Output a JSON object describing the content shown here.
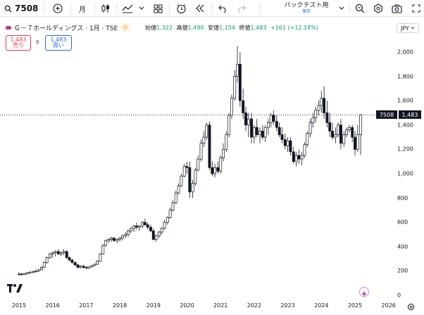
{
  "toolbar": {
    "symbol": "7508",
    "interval": "月",
    "backtest_title": "バックテスト用",
    "backtest_sub": "保存"
  },
  "legend": {
    "title": "Ｇ－７ホールディングス · 1月 · TSE",
    "badge": "D",
    "open_label": "始値",
    "open": "1,322",
    "high_label": "高値",
    "high": "1,490",
    "low_label": "安値",
    "low": "1,154",
    "close_label": "終値",
    "close": "1,483",
    "change": "+161 (+12.18%)"
  },
  "trade": {
    "sell_price": "1,483",
    "sell_label": "売り",
    "spread": "0",
    "buy_price": "1,483",
    "buy_label": "買い"
  },
  "currency": "JPY",
  "y_axis": [
    "2,000",
    "1,800",
    "1,600",
    "1,400",
    "1,200",
    "1,000",
    "800",
    "600",
    "400",
    "200",
    "0"
  ],
  "x_axis": [
    "2015",
    "2016",
    "2017",
    "2018",
    "2019",
    "2020",
    "2021",
    "2022",
    "2023",
    "2024",
    "2025",
    "2026"
  ],
  "price_tag": {
    "symbol": "7508",
    "price": "1,483"
  },
  "colors": {
    "up": "#131722",
    "down": "#131722",
    "accent": "#2962ff",
    "sell": "#f23645"
  },
  "icons": [
    "search-icon",
    "add-icon",
    "candles-icon",
    "indicators-icon",
    "layout-icon",
    "alert-icon",
    "replay-icon",
    "undo-icon",
    "redo-icon",
    "chevron-down-icon",
    "settings-icon",
    "screenshot-icon",
    "tradingview-logo",
    "bolt-icon"
  ],
  "chart_data": {
    "type": "candlestick",
    "ylim": [
      0,
      2100
    ],
    "x_range": [
      "2015-01",
      "2026-01"
    ],
    "series": [
      [
        2015.0,
        170,
        190,
        160,
        175
      ],
      [
        2015.08,
        175,
        185,
        160,
        170
      ],
      [
        2015.17,
        170,
        185,
        165,
        180
      ],
      [
        2015.25,
        180,
        190,
        170,
        185
      ],
      [
        2015.33,
        185,
        200,
        175,
        190
      ],
      [
        2015.42,
        190,
        200,
        180,
        195
      ],
      [
        2015.5,
        195,
        210,
        185,
        200
      ],
      [
        2015.58,
        200,
        215,
        190,
        210
      ],
      [
        2015.67,
        210,
        240,
        205,
        230
      ],
      [
        2015.75,
        230,
        280,
        225,
        270
      ],
      [
        2015.83,
        270,
        320,
        260,
        310
      ],
      [
        2015.92,
        310,
        350,
        300,
        340
      ],
      [
        2016.0,
        340,
        360,
        310,
        350
      ],
      [
        2016.08,
        350,
        370,
        320,
        360
      ],
      [
        2016.17,
        360,
        380,
        330,
        340
      ],
      [
        2016.25,
        340,
        360,
        320,
        350
      ],
      [
        2016.33,
        350,
        380,
        330,
        360
      ],
      [
        2016.42,
        360,
        370,
        300,
        310
      ],
      [
        2016.5,
        310,
        320,
        280,
        290
      ],
      [
        2016.58,
        290,
        300,
        260,
        270
      ],
      [
        2016.67,
        270,
        280,
        240,
        250
      ],
      [
        2016.75,
        250,
        260,
        220,
        230
      ],
      [
        2016.83,
        230,
        250,
        220,
        240
      ],
      [
        2016.92,
        240,
        250,
        220,
        230
      ],
      [
        2017.0,
        230,
        240,
        215,
        225
      ],
      [
        2017.08,
        225,
        240,
        215,
        235
      ],
      [
        2017.17,
        235,
        250,
        225,
        245
      ],
      [
        2017.25,
        245,
        260,
        240,
        255
      ],
      [
        2017.33,
        255,
        290,
        250,
        280
      ],
      [
        2017.42,
        280,
        350,
        275,
        340
      ],
      [
        2017.5,
        340,
        420,
        335,
        410
      ],
      [
        2017.58,
        410,
        460,
        400,
        450
      ],
      [
        2017.67,
        450,
        470,
        430,
        460
      ],
      [
        2017.75,
        460,
        480,
        440,
        470
      ],
      [
        2017.83,
        470,
        480,
        440,
        450
      ],
      [
        2017.92,
        450,
        470,
        430,
        460
      ],
      [
        2018.0,
        460,
        480,
        440,
        470
      ],
      [
        2018.08,
        470,
        500,
        450,
        490
      ],
      [
        2018.17,
        490,
        520,
        470,
        500
      ],
      [
        2018.25,
        500,
        540,
        480,
        530
      ],
      [
        2018.33,
        530,
        560,
        510,
        550
      ],
      [
        2018.42,
        550,
        580,
        520,
        570
      ],
      [
        2018.5,
        570,
        600,
        540,
        560
      ],
      [
        2018.58,
        560,
        580,
        530,
        570
      ],
      [
        2018.67,
        570,
        610,
        550,
        600
      ],
      [
        2018.75,
        600,
        630,
        570,
        580
      ],
      [
        2018.83,
        580,
        600,
        540,
        560
      ],
      [
        2018.92,
        560,
        580,
        520,
        530
      ],
      [
        2019.0,
        530,
        550,
        450,
        460
      ],
      [
        2019.08,
        460,
        500,
        440,
        490
      ],
      [
        2019.17,
        490,
        530,
        470,
        520
      ],
      [
        2019.25,
        520,
        560,
        500,
        550
      ],
      [
        2019.33,
        550,
        620,
        540,
        600
      ],
      [
        2019.42,
        600,
        650,
        580,
        640
      ],
      [
        2019.5,
        640,
        720,
        630,
        700
      ],
      [
        2019.58,
        700,
        780,
        690,
        760
      ],
      [
        2019.67,
        760,
        860,
        750,
        840
      ],
      [
        2019.75,
        840,
        920,
        830,
        900
      ],
      [
        2019.83,
        900,
        1000,
        890,
        980
      ],
      [
        2019.92,
        980,
        1080,
        970,
        1060
      ],
      [
        2020.0,
        1060,
        1100,
        1000,
        1050
      ],
      [
        2020.08,
        1050,
        1100,
        800,
        850
      ],
      [
        2020.17,
        850,
        950,
        800,
        920
      ],
      [
        2020.25,
        920,
        1050,
        900,
        1030
      ],
      [
        2020.33,
        1030,
        1150,
        1020,
        1120
      ],
      [
        2020.42,
        1120,
        1280,
        1100,
        1250
      ],
      [
        2020.5,
        1250,
        1350,
        1220,
        1300
      ],
      [
        2020.58,
        1300,
        1420,
        1280,
        1400
      ],
      [
        2020.67,
        1400,
        1430,
        1030,
        1050
      ],
      [
        2020.75,
        1050,
        1100,
        980,
        1000
      ],
      [
        2020.83,
        1000,
        1080,
        970,
        1050
      ],
      [
        2020.92,
        1050,
        1100,
        1000,
        1020
      ],
      [
        2021.0,
        1020,
        1150,
        1000,
        1130
      ],
      [
        2021.08,
        1130,
        1250,
        1100,
        1200
      ],
      [
        2021.17,
        1200,
        1350,
        1180,
        1320
      ],
      [
        2021.25,
        1320,
        1500,
        1300,
        1480
      ],
      [
        2021.33,
        1480,
        1650,
        1450,
        1620
      ],
      [
        2021.42,
        1620,
        1850,
        1600,
        1800
      ],
      [
        2021.5,
        1800,
        2050,
        1750,
        1900
      ],
      [
        2021.58,
        1900,
        2000,
        1550,
        1600
      ],
      [
        2021.67,
        1600,
        1700,
        1450,
        1500
      ],
      [
        2021.75,
        1500,
        1550,
        1350,
        1400
      ],
      [
        2021.83,
        1400,
        1500,
        1300,
        1450
      ],
      [
        2021.92,
        1450,
        1500,
        1250,
        1300
      ],
      [
        2022.0,
        1300,
        1400,
        1250,
        1380
      ],
      [
        2022.08,
        1380,
        1450,
        1300,
        1320
      ],
      [
        2022.17,
        1320,
        1380,
        1250,
        1350
      ],
      [
        2022.25,
        1350,
        1400,
        1280,
        1300
      ],
      [
        2022.33,
        1300,
        1400,
        1260,
        1380
      ],
      [
        2022.42,
        1380,
        1450,
        1320,
        1420
      ],
      [
        2022.5,
        1420,
        1500,
        1380,
        1480
      ],
      [
        2022.58,
        1480,
        1520,
        1400,
        1430
      ],
      [
        2022.67,
        1430,
        1480,
        1350,
        1380
      ],
      [
        2022.75,
        1380,
        1420,
        1300,
        1320
      ],
      [
        2022.83,
        1320,
        1380,
        1250,
        1280
      ],
      [
        2022.92,
        1280,
        1330,
        1200,
        1230
      ],
      [
        2023.0,
        1230,
        1300,
        1180,
        1270
      ],
      [
        2023.08,
        1270,
        1300,
        1150,
        1180
      ],
      [
        2023.17,
        1180,
        1220,
        1080,
        1100
      ],
      [
        2023.25,
        1100,
        1180,
        1060,
        1150
      ],
      [
        2023.33,
        1150,
        1200,
        1080,
        1120
      ],
      [
        2023.42,
        1120,
        1180,
        1070,
        1150
      ],
      [
        2023.5,
        1150,
        1260,
        1130,
        1240
      ],
      [
        2023.58,
        1240,
        1350,
        1220,
        1330
      ],
      [
        2023.67,
        1330,
        1450,
        1300,
        1420
      ],
      [
        2023.75,
        1420,
        1500,
        1380,
        1460
      ],
      [
        2023.83,
        1460,
        1550,
        1420,
        1520
      ],
      [
        2023.92,
        1520,
        1600,
        1480,
        1560
      ],
      [
        2024.0,
        1560,
        1680,
        1500,
        1620
      ],
      [
        2024.08,
        1620,
        1720,
        1450,
        1500
      ],
      [
        2024.17,
        1500,
        1600,
        1380,
        1420
      ],
      [
        2024.25,
        1420,
        1500,
        1300,
        1350
      ],
      [
        2024.33,
        1350,
        1420,
        1280,
        1300
      ],
      [
        2024.42,
        1300,
        1380,
        1250,
        1320
      ],
      [
        2024.5,
        1320,
        1420,
        1300,
        1400
      ],
      [
        2024.58,
        1400,
        1450,
        1200,
        1250
      ],
      [
        2024.67,
        1250,
        1350,
        1220,
        1320
      ],
      [
        2024.75,
        1320,
        1380,
        1300,
        1360
      ],
      [
        2024.83,
        1360,
        1400,
        1340,
        1380
      ],
      [
        2024.92,
        1380,
        1400,
        1260,
        1300
      ],
      [
        2025.0,
        1300,
        1350,
        1150,
        1200
      ],
      [
        2025.08,
        1200,
        1400,
        1180,
        1322
      ],
      [
        2025.17,
        1322,
        1490,
        1154,
        1483
      ]
    ]
  }
}
